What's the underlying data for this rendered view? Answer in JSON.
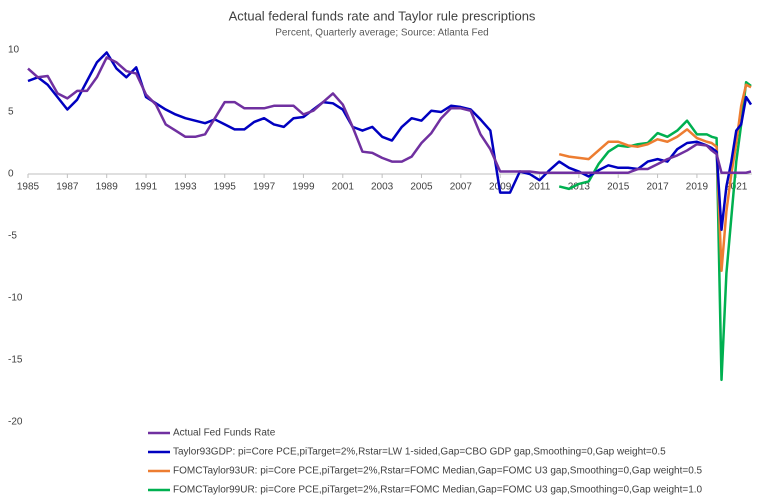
{
  "chart_data": {
    "type": "line",
    "title": "Actual federal funds rate and Taylor rule prescriptions",
    "subtitle": "Percent, Quarterly average; Source: Atlanta Fed",
    "x": [
      1985,
      1985.5,
      1986,
      1986.5,
      1987,
      1987.5,
      1988,
      1988.5,
      1989,
      1989.5,
      1990,
      1990.5,
      1991,
      1991.5,
      1992,
      1992.5,
      1993,
      1993.5,
      1994,
      1994.5,
      1995,
      1995.5,
      1996,
      1996.5,
      1997,
      1997.5,
      1998,
      1998.5,
      1999,
      1999.5,
      2000,
      2000.5,
      2001,
      2001.5,
      2002,
      2002.5,
      2003,
      2003.5,
      2004,
      2004.5,
      2005,
      2005.5,
      2006,
      2006.5,
      2007,
      2007.5,
      2008,
      2008.5,
      2009,
      2009.5,
      2010,
      2010.5,
      2011,
      2011.5,
      2012,
      2012.5,
      2013,
      2013.5,
      2014,
      2014.5,
      2015,
      2015.5,
      2016,
      2016.5,
      2017,
      2017.5,
      2018,
      2018.5,
      2019,
      2019.5,
      2019.75,
      2020,
      2020.25,
      2020.5,
      2020.75,
      2021,
      2021.25,
      2021.5,
      2021.75
    ],
    "series": [
      {
        "name": "Actual Fed Funds Rate",
        "color": "#7030a0",
        "values": [
          8.5,
          7.8,
          7.9,
          6.5,
          6.1,
          6.7,
          6.7,
          7.8,
          9.4,
          9.0,
          8.3,
          8.1,
          6.4,
          5.6,
          4.0,
          3.5,
          3.0,
          3.0,
          3.2,
          4.5,
          5.8,
          5.8,
          5.3,
          5.3,
          5.3,
          5.5,
          5.5,
          5.5,
          4.8,
          5.1,
          5.8,
          6.5,
          5.6,
          3.8,
          1.8,
          1.7,
          1.3,
          1.0,
          1.0,
          1.4,
          2.5,
          3.3,
          4.5,
          5.3,
          5.3,
          5.1,
          3.2,
          2.0,
          0.2,
          0.2,
          0.2,
          0.2,
          0.1,
          0.1,
          0.1,
          0.1,
          0.1,
          0.1,
          0.1,
          0.1,
          0.1,
          0.1,
          0.4,
          0.4,
          0.8,
          1.2,
          1.5,
          1.9,
          2.4,
          2.3,
          1.9,
          1.6,
          0.1,
          0.1,
          0.1,
          0.1,
          0.1,
          0.1,
          0.2
        ]
      },
      {
        "name": "Taylor93GDP:  pi=Core PCE,piTarget=2%,Rstar=LW 1-sided,Gap=CBO GDP gap,Smoothing=0,Gap weight=0.5",
        "color": "#0000c0",
        "values": [
          7.5,
          7.8,
          7.2,
          6.2,
          5.2,
          6.0,
          7.5,
          9.0,
          9.8,
          8.5,
          7.8,
          8.6,
          6.2,
          5.7,
          5.2,
          4.8,
          4.5,
          4.3,
          4.1,
          4.4,
          4.0,
          3.6,
          3.6,
          4.2,
          4.5,
          4.0,
          3.8,
          4.5,
          4.6,
          5.2,
          5.8,
          5.7,
          5.2,
          3.8,
          3.5,
          3.8,
          3.0,
          2.7,
          3.8,
          4.5,
          4.3,
          5.1,
          5.0,
          5.5,
          5.4,
          5.2,
          4.4,
          3.5,
          -1.5,
          -1.5,
          0.2,
          0.0,
          -0.5,
          0.3,
          1.0,
          0.5,
          0.2,
          -0.2,
          0.3,
          0.7,
          0.5,
          0.5,
          0.4,
          1.0,
          1.2,
          1.0,
          2.0,
          2.5,
          2.6,
          2.3,
          2.1,
          1.8,
          -4.5,
          -1.0,
          1.0,
          3.5,
          4.0,
          6.2,
          5.6
        ]
      },
      {
        "name": "FOMCTaylor93UR:  pi=Core PCE,piTarget=2%,Rstar=FOMC Median,Gap=FOMC U3 gap,Smoothing=0,Gap weight=0.5",
        "color": "#ed7d31",
        "values": [
          null,
          null,
          null,
          null,
          null,
          null,
          null,
          null,
          null,
          null,
          null,
          null,
          null,
          null,
          null,
          null,
          null,
          null,
          null,
          null,
          null,
          null,
          null,
          null,
          null,
          null,
          null,
          null,
          null,
          null,
          null,
          null,
          null,
          null,
          null,
          null,
          null,
          null,
          null,
          null,
          null,
          null,
          null,
          null,
          null,
          null,
          null,
          null,
          null,
          null,
          null,
          null,
          null,
          null,
          1.6,
          1.4,
          1.3,
          1.2,
          1.9,
          2.6,
          2.6,
          2.3,
          2.2,
          2.4,
          2.8,
          2.6,
          3.0,
          3.6,
          2.9,
          2.6,
          2.5,
          2.2,
          -7.8,
          -3.0,
          0.0,
          2.5,
          5.5,
          7.2,
          7.0
        ]
      },
      {
        "name": "FOMCTaylor99UR:  pi=Core PCE,piTarget=2%,Rstar=FOMC Median,Gap=FOMC U3 gap,Smoothing=0,Gap weight=1.0",
        "color": "#00b050",
        "values": [
          null,
          null,
          null,
          null,
          null,
          null,
          null,
          null,
          null,
          null,
          null,
          null,
          null,
          null,
          null,
          null,
          null,
          null,
          null,
          null,
          null,
          null,
          null,
          null,
          null,
          null,
          null,
          null,
          null,
          null,
          null,
          null,
          null,
          null,
          null,
          null,
          null,
          null,
          null,
          null,
          null,
          null,
          null,
          null,
          null,
          null,
          null,
          null,
          null,
          null,
          null,
          null,
          null,
          null,
          -1.0,
          -1.2,
          -0.8,
          -0.6,
          0.8,
          1.8,
          2.3,
          2.2,
          2.4,
          2.5,
          3.3,
          3.0,
          3.5,
          4.3,
          3.2,
          3.2,
          3.0,
          2.9,
          -16.6,
          -8.0,
          -3.5,
          1.0,
          4.0,
          7.4,
          7.1
        ]
      }
    ],
    "xlim": [
      1985,
      2021.8
    ],
    "xticks": [
      1985,
      1987,
      1989,
      1991,
      1993,
      1995,
      1997,
      1999,
      2001,
      2003,
      2005,
      2007,
      2009,
      2011,
      2013,
      2015,
      2017,
      2019,
      2021
    ],
    "ylim": [
      -20,
      10
    ],
    "yticks": [
      -20,
      -15,
      -10,
      -5,
      0,
      5,
      10
    ],
    "grid": false,
    "legend": "bottom"
  }
}
